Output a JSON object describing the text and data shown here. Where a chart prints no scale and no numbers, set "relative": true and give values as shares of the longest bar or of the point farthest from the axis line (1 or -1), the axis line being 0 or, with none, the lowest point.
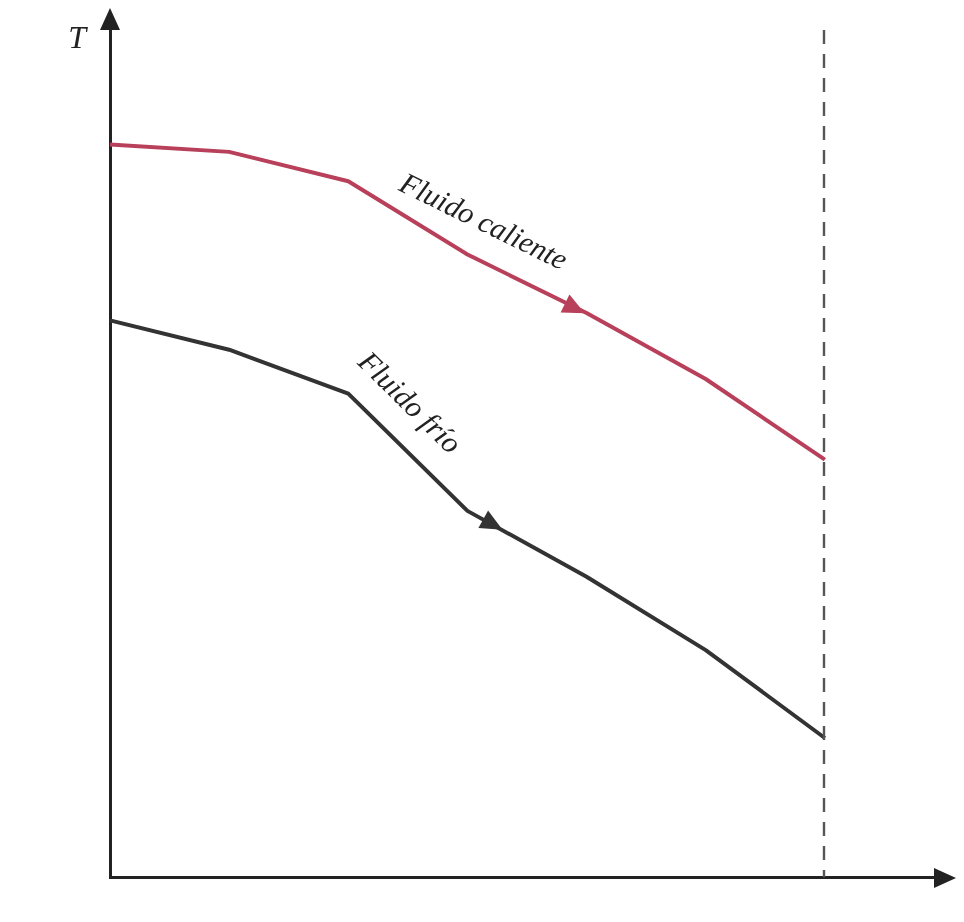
{
  "chart_data": {
    "type": "line",
    "relative": true,
    "ylabel": "T",
    "categories": [
      null,
      null,
      null,
      null,
      null,
      null,
      null,
      null
    ],
    "grid": false,
    "legend": false,
    "marker": "none",
    "line_style": "solid",
    "series": [
      {
        "name": "Fluido caliente",
        "color": "#b8405a",
        "values": [
          1,
          0.99,
          0.95,
          0.85,
          0.77,
          0.68,
          0.57,
          null
        ]
      },
      {
        "name": "Fluido frío",
        "color": "#333333",
        "values": [
          0.76,
          0.72,
          0.66,
          0.5,
          0.41,
          0.31,
          0.19,
          null
        ]
      }
    ]
  }
}
